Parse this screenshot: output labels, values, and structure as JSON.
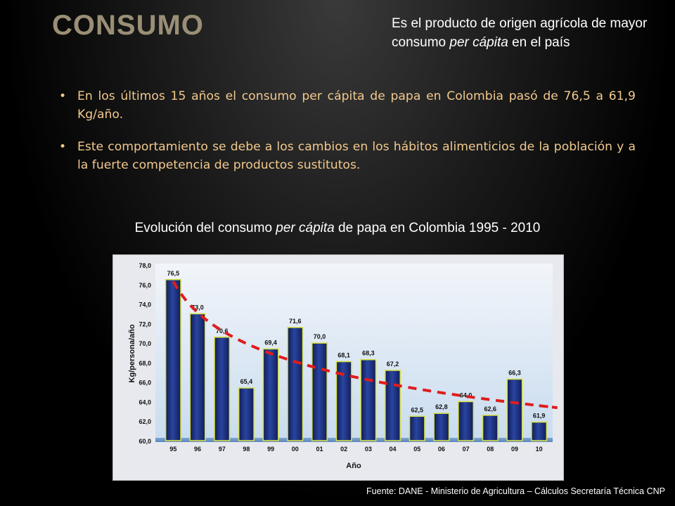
{
  "slide": {
    "title": "CONSUMO",
    "note_part1": "Es el producto de origen agrícola de mayor consumo ",
    "note_italic": "per cápita",
    "note_part2": " en el país"
  },
  "bullets": [
    "En los últimos 15 años el consumo per cápita de papa en Colombia pasó de 76,5 a 61,9 Kg/año.",
    "Este comportamiento se debe a los cambios en los hábitos alimenticios de la población y a la fuerte competencia de productos sustitutos."
  ],
  "chart_heading": {
    "part1": "Evolución del consumo ",
    "italic": "per cápita",
    "part2": " de papa en Colombia 1995 - 2010"
  },
  "chart_data": {
    "type": "bar",
    "categories": [
      "95",
      "96",
      "97",
      "98",
      "99",
      "00",
      "01",
      "02",
      "03",
      "04",
      "05",
      "06",
      "07",
      "08",
      "09",
      "10"
    ],
    "values": [
      76.5,
      73.0,
      70.6,
      65.4,
      69.4,
      71.6,
      70.0,
      68.1,
      68.3,
      67.2,
      62.5,
      62.8,
      64.0,
      62.6,
      66.3,
      61.9
    ],
    "data_labels": [
      "76,5",
      "73,0",
      "70,6",
      "65,4",
      "69,4",
      "71,6",
      "70,0",
      "68,1",
      "68,3",
      "67,2",
      "62,5",
      "62,8",
      "64,0",
      "62,6",
      "66,3",
      "61,9"
    ],
    "ylim": [
      60.0,
      78.0
    ],
    "yticks": [
      "60,0",
      "62,0",
      "64,0",
      "66,0",
      "68,0",
      "70,0",
      "72,0",
      "74,0",
      "76,0",
      "78,0"
    ],
    "xlabel": "Año",
    "ylabel": "Kg/persona/año",
    "trendline": {
      "style": "dashed",
      "color": "#e01c1c"
    },
    "bar_color": "#1c2f7a",
    "bar_edge_color": "#d8e04a"
  },
  "source": "Fuente: DANE - Ministerio de Agricultura – Cálculos Secretaría Técnica CNP"
}
